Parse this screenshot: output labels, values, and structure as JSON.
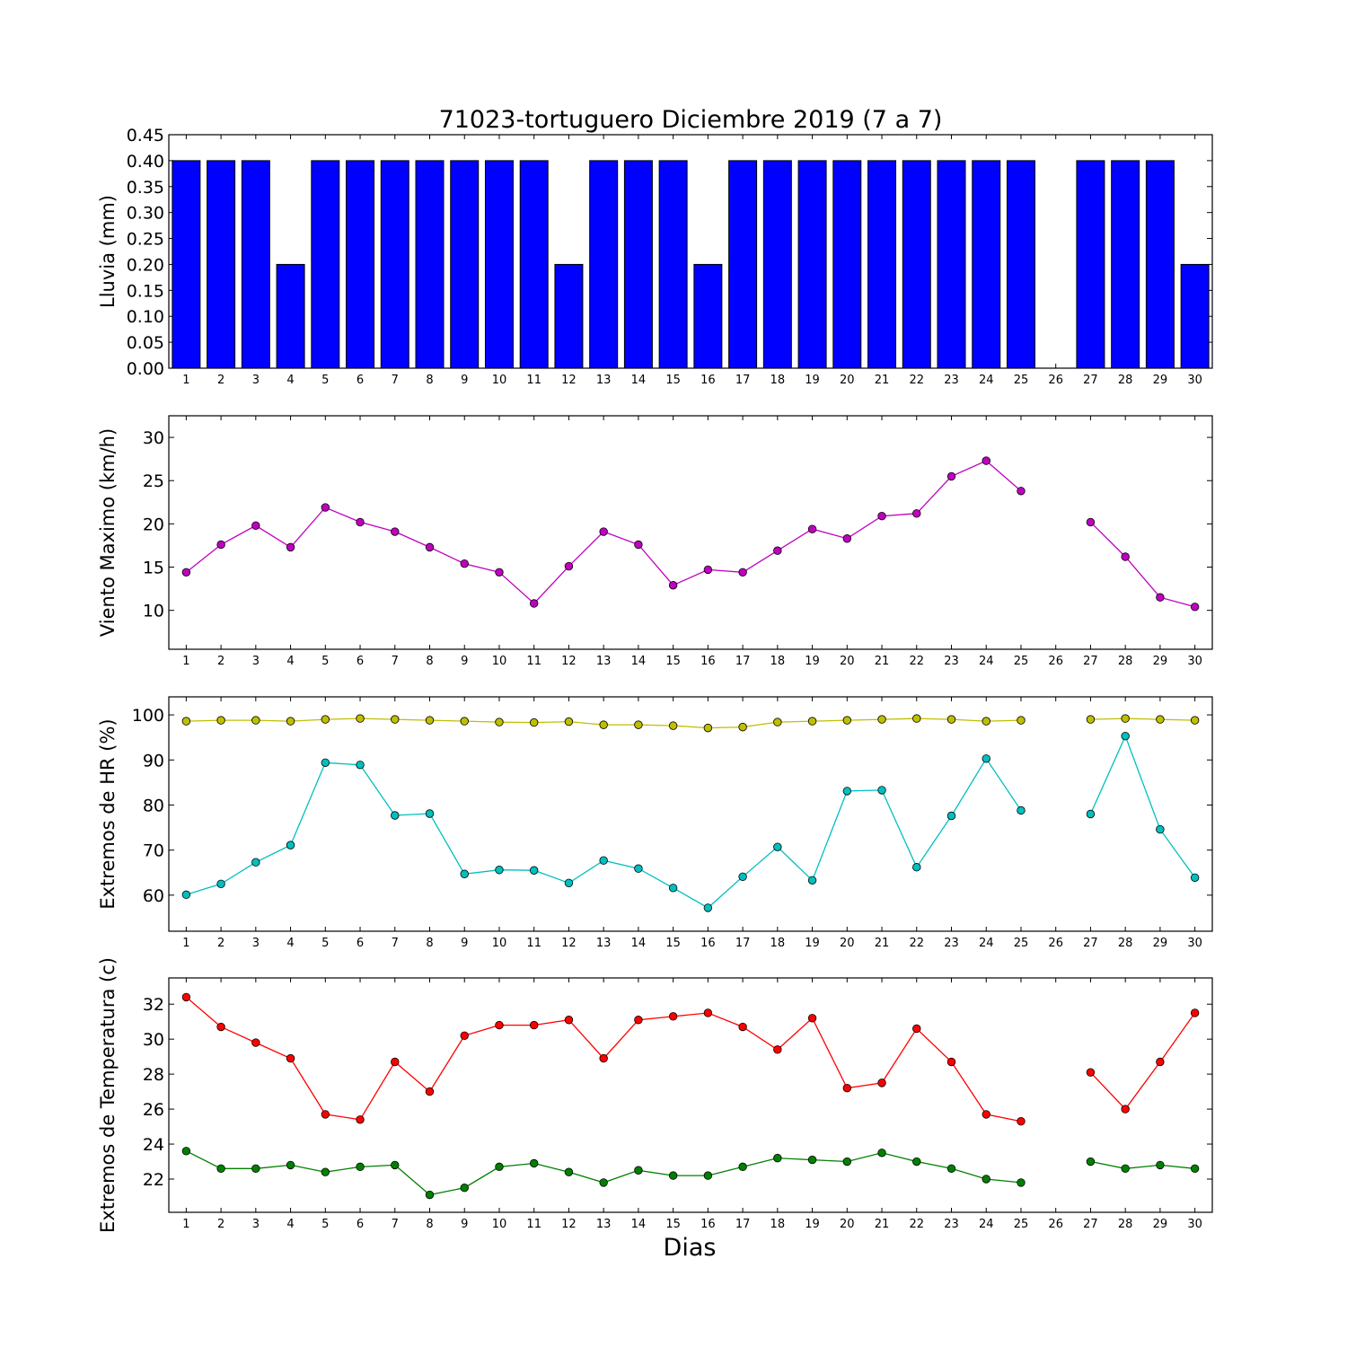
{
  "figure": {
    "title": "71023-tortuguero Diciembre 2019  (7 a 7)",
    "xlabel": "Dias"
  },
  "chart_data": [
    {
      "type": "bar",
      "ylabel": "Lluvia (mm)",
      "ylim": [
        0,
        0.45
      ],
      "yticks": [
        "0.00",
        "0.05",
        "0.10",
        "0.15",
        "0.20",
        "0.25",
        "0.30",
        "0.35",
        "0.40",
        "0.45"
      ],
      "categories": [
        1,
        2,
        3,
        4,
        5,
        6,
        7,
        8,
        9,
        10,
        11,
        12,
        13,
        14,
        15,
        16,
        17,
        18,
        19,
        20,
        21,
        22,
        23,
        24,
        25,
        26,
        27,
        28,
        29,
        30
      ],
      "series": [
        {
          "color": "#0000ff",
          "values": [
            0.4,
            0.4,
            0.4,
            0.2,
            0.4,
            0.4,
            0.4,
            0.4,
            0.4,
            0.4,
            0.4,
            0.2,
            0.4,
            0.4,
            0.4,
            0.2,
            0.4,
            0.4,
            0.4,
            0.4,
            0.4,
            0.4,
            0.4,
            0.4,
            0.4,
            null,
            0.4,
            0.4,
            0.4,
            0.2
          ]
        }
      ]
    },
    {
      "type": "line",
      "ylabel": "Viento Maximo (km/h)",
      "ylim": [
        5.5,
        32.5
      ],
      "yticks": [
        "10",
        "15",
        "20",
        "25",
        "30"
      ],
      "categories": [
        1,
        2,
        3,
        4,
        5,
        6,
        7,
        8,
        9,
        10,
        11,
        12,
        13,
        14,
        15,
        16,
        17,
        18,
        19,
        20,
        21,
        22,
        23,
        24,
        25,
        26,
        27,
        28,
        29,
        30
      ],
      "series": [
        {
          "color": "#bf00bf",
          "values": [
            14.4,
            17.6,
            19.8,
            17.3,
            21.9,
            20.2,
            19.1,
            17.3,
            15.4,
            14.4,
            10.8,
            15.1,
            19.1,
            17.6,
            12.9,
            14.7,
            14.4,
            16.9,
            19.4,
            18.3,
            20.9,
            21.2,
            25.5,
            27.3,
            23.8,
            null,
            20.2,
            16.2,
            11.5,
            10.4
          ]
        }
      ]
    },
    {
      "type": "line",
      "ylabel": "Extremos de HR (%)",
      "ylim": [
        52,
        104
      ],
      "yticks": [
        "60",
        "70",
        "80",
        "90",
        "100"
      ],
      "categories": [
        1,
        2,
        3,
        4,
        5,
        6,
        7,
        8,
        9,
        10,
        11,
        12,
        13,
        14,
        15,
        16,
        17,
        18,
        19,
        20,
        21,
        22,
        23,
        24,
        25,
        26,
        27,
        28,
        29,
        30
      ],
      "series": [
        {
          "color": "#bfbf00",
          "values": [
            98.6,
            98.8,
            98.8,
            98.6,
            99.0,
            99.2,
            99.0,
            98.8,
            98.6,
            98.4,
            98.3,
            98.5,
            97.8,
            97.8,
            97.6,
            97.1,
            97.3,
            98.4,
            98.6,
            98.8,
            99.0,
            99.2,
            99.0,
            98.6,
            98.8,
            null,
            99.0,
            99.2,
            99.0,
            98.8
          ]
        },
        {
          "color": "#00bfbf",
          "values": [
            60.1,
            62.5,
            67.3,
            71.1,
            89.4,
            88.9,
            77.7,
            78.1,
            64.7,
            65.6,
            65.5,
            62.7,
            67.7,
            65.9,
            61.6,
            57.2,
            64.1,
            70.7,
            63.3,
            83.1,
            83.3,
            66.2,
            77.6,
            90.3,
            78.8,
            null,
            78.0,
            95.3,
            74.6,
            63.9
          ]
        }
      ]
    },
    {
      "type": "line",
      "ylabel": "Extremos de Temperatura (c)",
      "ylim": [
        20.1,
        33.5
      ],
      "yticks": [
        "22",
        "24",
        "26",
        "28",
        "30",
        "32"
      ],
      "categories": [
        1,
        2,
        3,
        4,
        5,
        6,
        7,
        8,
        9,
        10,
        11,
        12,
        13,
        14,
        15,
        16,
        17,
        18,
        19,
        20,
        21,
        22,
        23,
        24,
        25,
        26,
        27,
        28,
        29,
        30
      ],
      "series": [
        {
          "color": "#ff0000",
          "values": [
            32.4,
            30.7,
            29.8,
            28.9,
            25.7,
            25.4,
            28.7,
            27.0,
            30.2,
            30.8,
            30.8,
            31.1,
            28.9,
            31.1,
            31.3,
            31.5,
            30.7,
            29.4,
            31.2,
            27.2,
            27.5,
            30.6,
            28.7,
            25.7,
            25.3,
            null,
            28.1,
            26.0,
            28.7,
            31.5
          ]
        },
        {
          "color": "#008000",
          "values": [
            23.6,
            22.6,
            22.6,
            22.8,
            22.4,
            22.7,
            22.8,
            21.1,
            21.5,
            22.7,
            22.9,
            22.4,
            21.8,
            22.5,
            22.2,
            22.2,
            22.7,
            23.2,
            23.1,
            23.0,
            23.5,
            23.0,
            22.6,
            22.0,
            21.8,
            null,
            23.0,
            22.6,
            22.8,
            22.6
          ]
        }
      ]
    }
  ]
}
